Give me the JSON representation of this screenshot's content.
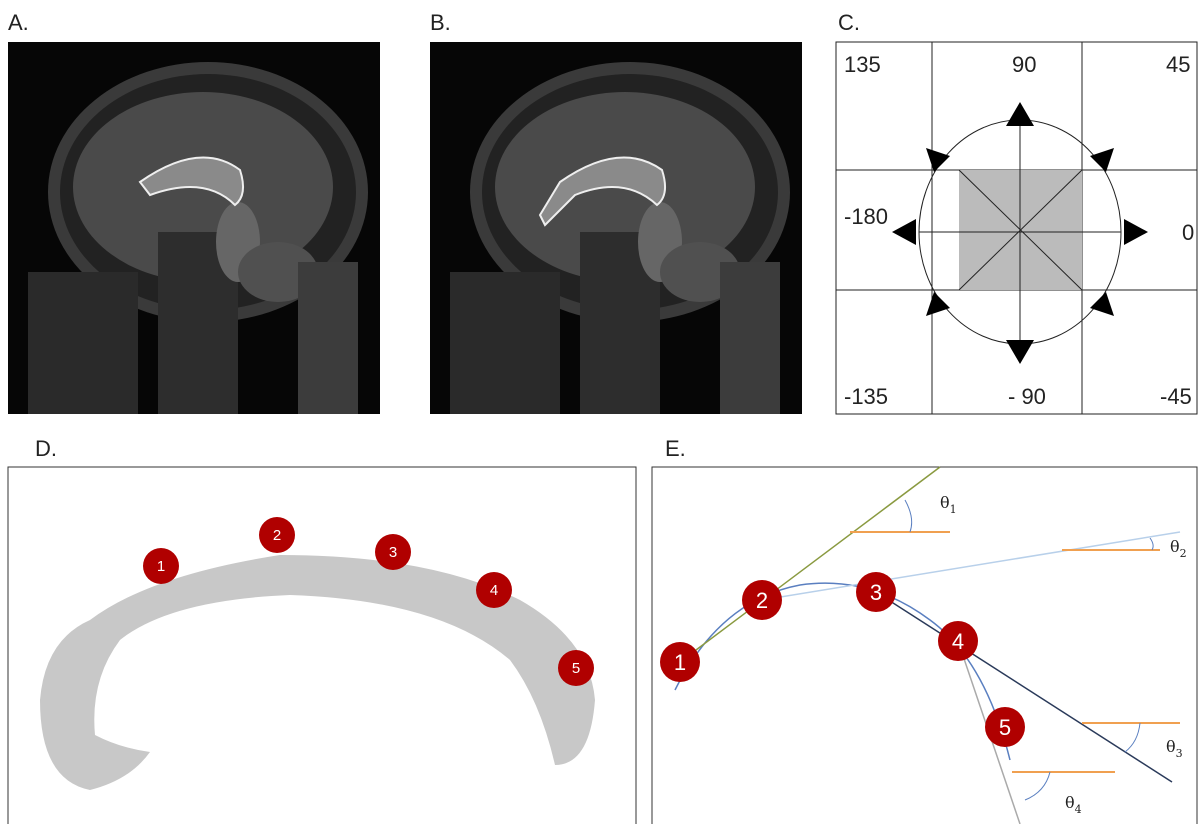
{
  "panels": {
    "a": {
      "label": "A."
    },
    "b": {
      "label": "B."
    },
    "c": {
      "label": "C.",
      "angles": [
        "135",
        "90",
        "45",
        "-180",
        "0",
        "-135",
        "- 90",
        "-45"
      ]
    },
    "d": {
      "label": "D.",
      "points": [
        "1",
        "2",
        "3",
        "4",
        "5"
      ]
    },
    "e": {
      "label": "E.",
      "points": [
        "1",
        "2",
        "3",
        "4",
        "5"
      ],
      "angles": [
        {
          "symbol": "θ",
          "subscript": "1"
        },
        {
          "symbol": "θ",
          "subscript": "2"
        },
        {
          "symbol": "θ",
          "subscript": "3"
        },
        {
          "symbol": "θ",
          "subscript": "4"
        }
      ]
    }
  }
}
